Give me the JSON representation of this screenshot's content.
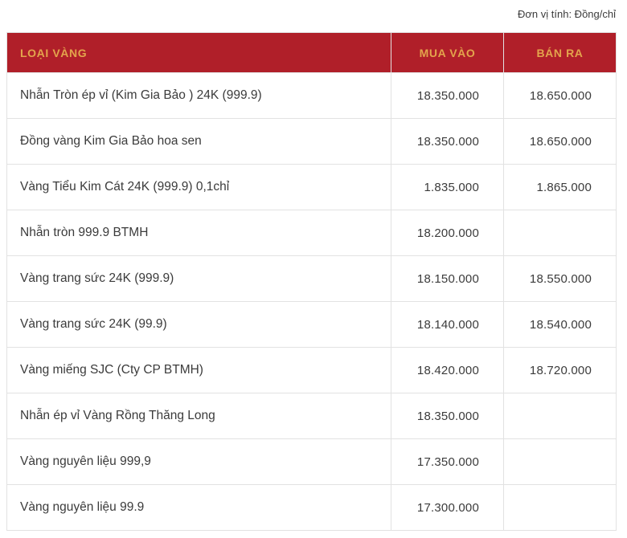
{
  "page": {
    "unit_label": "Đơn vị tính: Đồng/chỉ"
  },
  "table": {
    "columns": [
      {
        "key": "type",
        "label": "LOẠI VÀNG"
      },
      {
        "key": "buy",
        "label": "MUA VÀO"
      },
      {
        "key": "sell",
        "label": "BÁN RA"
      }
    ],
    "rows": [
      {
        "type": "Nhẫn Tròn ép vỉ (Kim Gia Bảo ) 24K (999.9)",
        "buy": "18.350.000",
        "sell": "18.650.000"
      },
      {
        "type": "Đồng vàng Kim Gia Bảo hoa sen",
        "buy": "18.350.000",
        "sell": "18.650.000"
      },
      {
        "type": "Vàng Tiểu Kim Cát 24K (999.9) 0,1chỉ",
        "buy": "1.835.000",
        "sell": "1.865.000"
      },
      {
        "type": "Nhẫn tròn 999.9 BTMH",
        "buy": "18.200.000",
        "sell": ""
      },
      {
        "type": "Vàng trang sức 24K (999.9)",
        "buy": "18.150.000",
        "sell": "18.550.000"
      },
      {
        "type": "Vàng trang sức 24K (99.9)",
        "buy": "18.140.000",
        "sell": "18.540.000"
      },
      {
        "type": "Vàng miếng SJC (Cty CP BTMH)",
        "buy": "18.420.000",
        "sell": "18.720.000"
      },
      {
        "type": "Nhẫn ép vỉ Vàng Rồng Thăng Long",
        "buy": "18.350.000",
        "sell": ""
      },
      {
        "type": "Vàng nguyên liệu 999,9",
        "buy": "17.350.000",
        "sell": ""
      },
      {
        "type": "Vàng nguyên liệu 99.9",
        "buy": "17.300.000",
        "sell": ""
      }
    ]
  },
  "colors": {
    "header_bg": "#B01F29",
    "header_text": "#E3A44C",
    "row_text": "#3B3B3B",
    "border": "#E2E2E2"
  }
}
